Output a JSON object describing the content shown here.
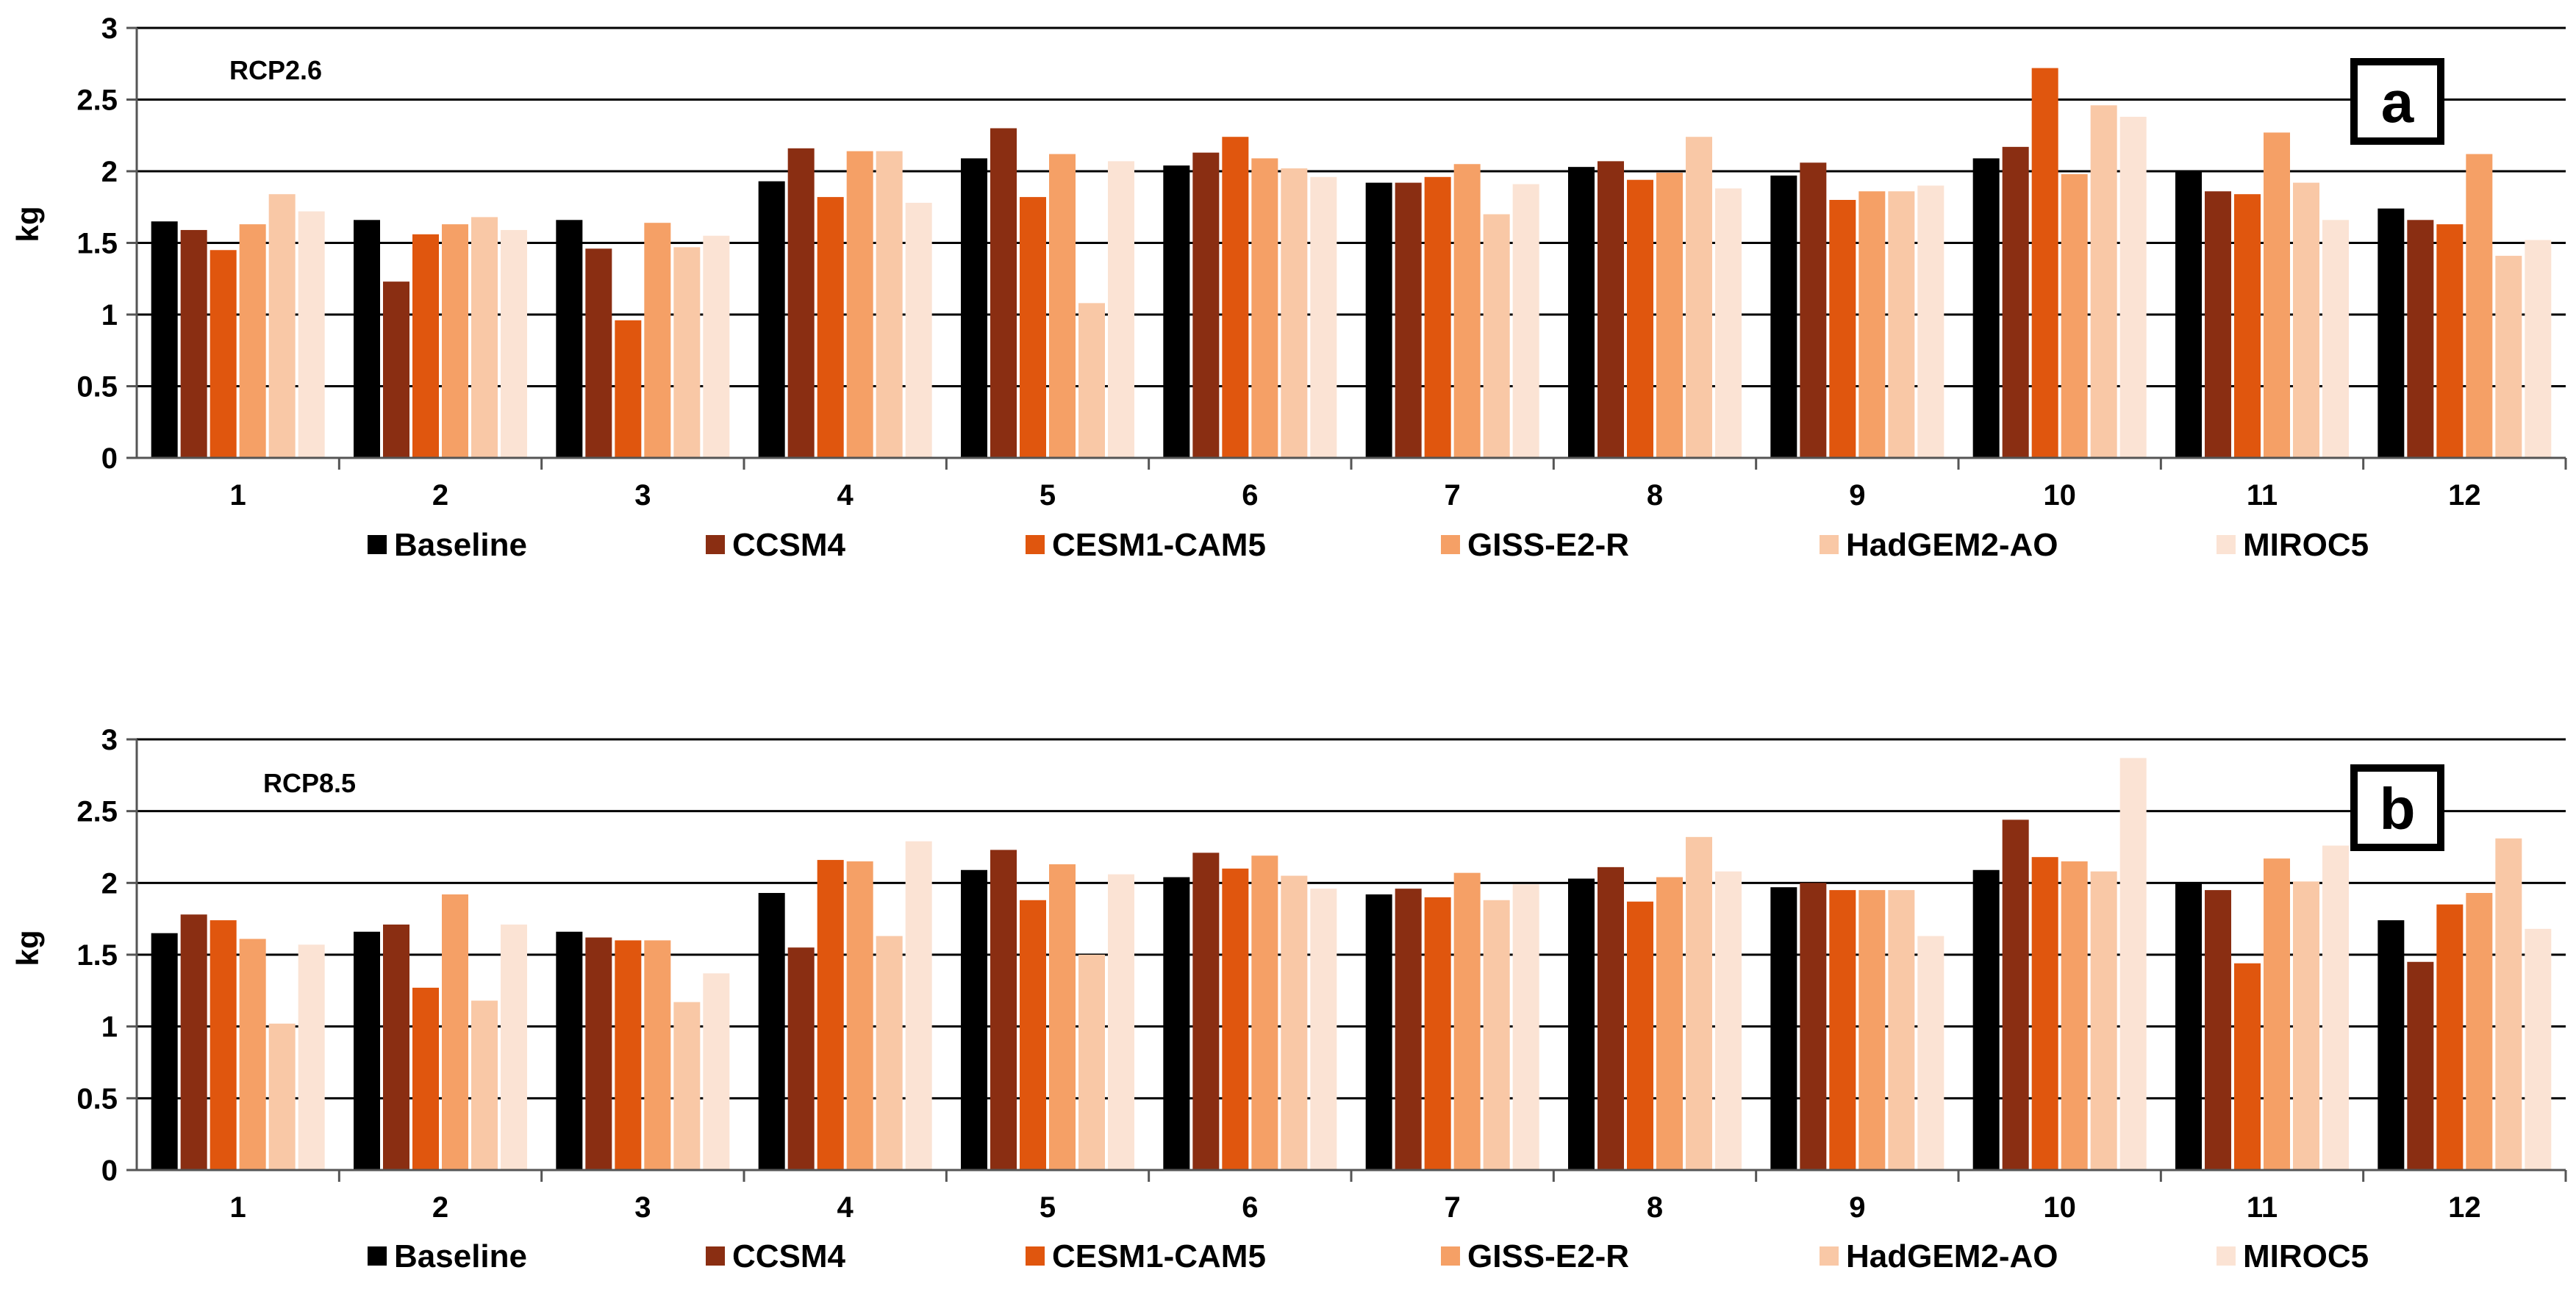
{
  "colors": {
    "series": [
      "#000000",
      "#8a2e12",
      "#e0560e",
      "#f5a066",
      "#f9c8a6",
      "#fbe3d4"
    ],
    "grid": "#000000",
    "axis": "#555555"
  },
  "chart_data": [
    {
      "type": "bar",
      "panel_label": "a",
      "scenario_label": "RCP2.6",
      "xlabel": "",
      "ylabel": "kg",
      "ylim": [
        0,
        3
      ],
      "yticks": [
        "0",
        "0.5",
        "1",
        "1.5",
        "2",
        "2.5",
        "3"
      ],
      "grid": true,
      "legend_position": "bottom",
      "categories": [
        "1",
        "2",
        "3",
        "4",
        "5",
        "6",
        "7",
        "8",
        "9",
        "10",
        "11",
        "12"
      ],
      "series": [
        {
          "name": "Baseline",
          "values": [
            1.65,
            1.66,
            1.66,
            1.93,
            2.09,
            2.04,
            1.92,
            2.03,
            1.97,
            2.09,
            2.0,
            1.74
          ]
        },
        {
          "name": "CCSM4",
          "values": [
            1.59,
            1.23,
            1.46,
            2.16,
            2.3,
            2.13,
            1.92,
            2.07,
            2.06,
            2.17,
            1.86,
            1.66
          ]
        },
        {
          "name": "CESM1-CAM5",
          "values": [
            1.45,
            1.56,
            0.96,
            1.82,
            1.82,
            2.24,
            1.96,
            1.94,
            1.8,
            2.72,
            1.84,
            1.63
          ]
        },
        {
          "name": "GISS-E2-R",
          "values": [
            1.63,
            1.63,
            1.64,
            2.14,
            2.12,
            2.09,
            2.05,
            1.99,
            1.86,
            1.98,
            2.27,
            2.12
          ]
        },
        {
          "name": "HadGEM2-AO",
          "values": [
            1.84,
            1.68,
            1.47,
            2.14,
            1.08,
            2.02,
            1.7,
            2.24,
            1.86,
            2.46,
            1.92,
            1.41
          ]
        },
        {
          "name": "MIROC5",
          "values": [
            1.72,
            1.59,
            1.55,
            1.78,
            2.07,
            1.96,
            1.91,
            1.88,
            1.9,
            2.38,
            1.66,
            1.52
          ]
        }
      ]
    },
    {
      "type": "bar",
      "panel_label": "b",
      "scenario_label": "RCP8.5",
      "xlabel": "",
      "ylabel": "kg",
      "ylim": [
        0,
        3
      ],
      "yticks": [
        "0",
        "0.5",
        "1",
        "1.5",
        "2",
        "2.5",
        "3"
      ],
      "grid": true,
      "legend_position": "bottom",
      "categories": [
        "1",
        "2",
        "3",
        "4",
        "5",
        "6",
        "7",
        "8",
        "9",
        "10",
        "11",
        "12"
      ],
      "series": [
        {
          "name": "Baseline",
          "values": [
            1.65,
            1.66,
            1.66,
            1.93,
            2.09,
            2.04,
            1.92,
            2.03,
            1.97,
            2.09,
            2.0,
            1.74
          ]
        },
        {
          "name": "CCSM4",
          "values": [
            1.78,
            1.71,
            1.62,
            1.55,
            2.23,
            2.21,
            1.96,
            2.11,
            2.0,
            2.44,
            1.95,
            1.45
          ]
        },
        {
          "name": "CESM1-CAM5",
          "values": [
            1.74,
            1.27,
            1.6,
            2.16,
            1.88,
            2.1,
            1.9,
            1.87,
            1.95,
            2.18,
            1.44,
            1.85
          ]
        },
        {
          "name": "GISS-E2-R",
          "values": [
            1.61,
            1.92,
            1.6,
            2.15,
            2.13,
            2.19,
            2.07,
            2.04,
            1.95,
            2.15,
            2.17,
            1.93
          ]
        },
        {
          "name": "HadGEM2-AO",
          "values": [
            1.02,
            1.18,
            1.17,
            1.63,
            1.5,
            2.05,
            1.88,
            2.32,
            1.95,
            2.08,
            2.01,
            2.31
          ]
        },
        {
          "name": "MIROC5",
          "values": [
            1.57,
            1.71,
            1.37,
            2.29,
            2.06,
            1.96,
            1.99,
            2.08,
            1.63,
            2.87,
            2.26,
            1.68
          ]
        }
      ]
    }
  ]
}
